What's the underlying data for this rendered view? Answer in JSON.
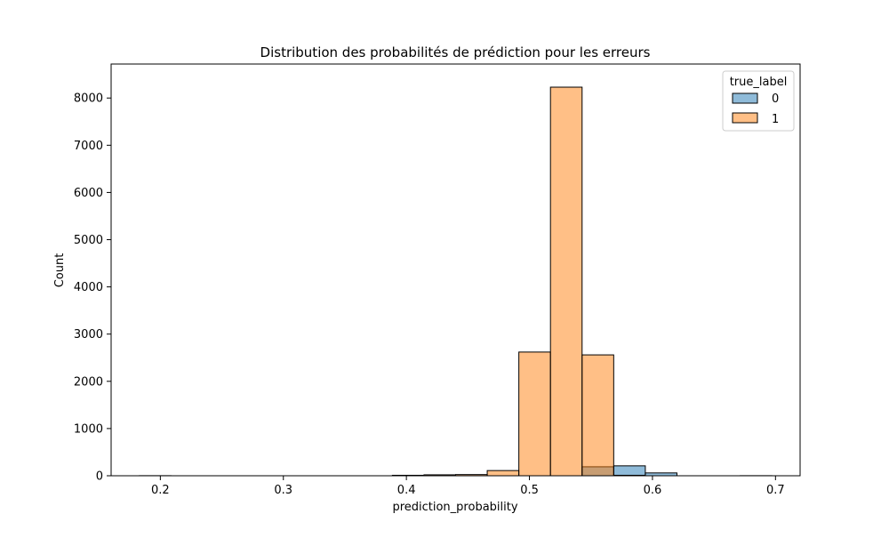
{
  "chart_data": {
    "type": "bar",
    "title": "Distribution des probabilités de prédiction pour les erreurs",
    "xlabel": "prediction_probability",
    "ylabel": "Count",
    "xlim": [
      0.16,
      0.72
    ],
    "ylim": [
      0,
      8720
    ],
    "xticks": [
      0.2,
      0.3,
      0.4,
      0.5,
      0.6,
      0.7
    ],
    "xtick_labels": [
      "0.2",
      "0.3",
      "0.4",
      "0.5",
      "0.6",
      "0.7"
    ],
    "yticks": [
      0,
      1000,
      2000,
      3000,
      4000,
      5000,
      6000,
      7000,
      8000
    ],
    "ytick_labels": [
      "0",
      "1000",
      "2000",
      "3000",
      "4000",
      "5000",
      "6000",
      "7000",
      "8000"
    ],
    "grid": false,
    "legend": {
      "title": "true_label",
      "placement": "top-right"
    },
    "bin_edges": [
      0.183,
      0.2087,
      0.2344,
      0.2601,
      0.2858,
      0.3115,
      0.3372,
      0.3629,
      0.3886,
      0.4143,
      0.44,
      0.4657,
      0.4914,
      0.5171,
      0.5428,
      0.5685,
      0.5942,
      0.6199,
      0.6456,
      0.6713,
      0.697
    ],
    "series": [
      {
        "name": "0",
        "color": "#1f77b4",
        "values": [
          0,
          0,
          0,
          0,
          0,
          0,
          0,
          0,
          0,
          0,
          0,
          0,
          0,
          0,
          190,
          210,
          60,
          0,
          0,
          0
        ]
      },
      {
        "name": "1",
        "color": "#ff7f0e",
        "values": [
          2,
          0,
          0,
          0,
          0,
          0,
          0,
          0,
          10,
          20,
          25,
          110,
          2620,
          8230,
          2560,
          10,
          0,
          0,
          0,
          2
        ]
      }
    ]
  }
}
